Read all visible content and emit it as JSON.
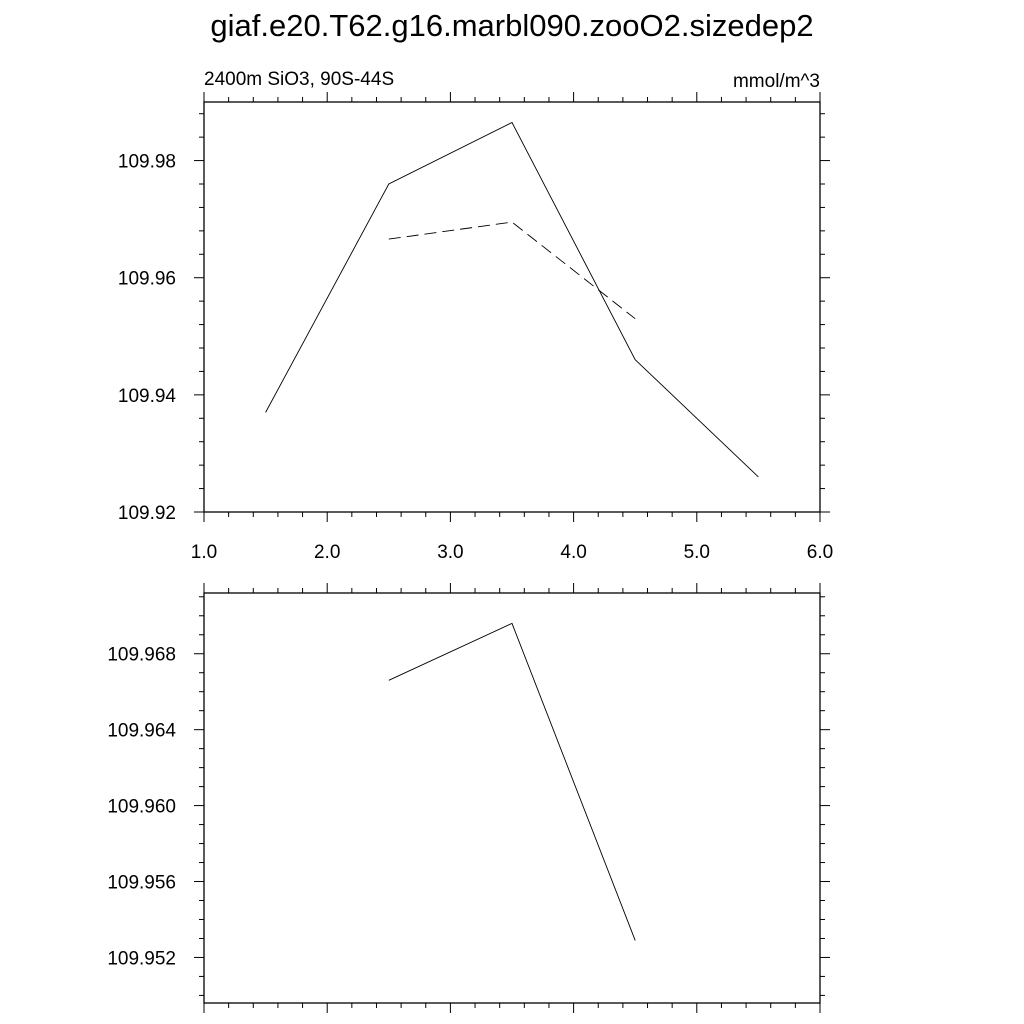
{
  "title": "giaf.e20.T62.g16.marbl090.zooO2.sizedep2",
  "chart_data": [
    {
      "type": "line",
      "subtitle_left": "2400m SiO3, 90S-44S",
      "subtitle_right": "mmol/m^3",
      "xlim": [
        1.0,
        6.0
      ],
      "ylim": [
        109.92,
        109.99
      ],
      "xticks": [
        1.0,
        2.0,
        3.0,
        4.0,
        5.0,
        6.0
      ],
      "xtick_labels": [
        "1.0",
        "2.0",
        "3.0",
        "4.0",
        "5.0",
        "6.0"
      ],
      "yticks": [
        109.92,
        109.94,
        109.96,
        109.98
      ],
      "ytick_labels": [
        "109.92",
        "109.94",
        "109.96",
        "109.98"
      ],
      "grid": false,
      "series": [
        {
          "style": "solid",
          "x": [
            1.5,
            2.5,
            3.5,
            4.5,
            5.5
          ],
          "y": [
            109.937,
            109.976,
            109.9865,
            109.946,
            109.926
          ]
        },
        {
          "style": "dashed",
          "x": [
            2.5,
            3.5,
            4.5
          ],
          "y": [
            109.9666,
            109.9695,
            109.953
          ]
        }
      ]
    },
    {
      "type": "line",
      "xlim": [
        1.0,
        6.0
      ],
      "ylim": [
        109.9496,
        109.9712
      ],
      "yticks": [
        109.952,
        109.956,
        109.96,
        109.964,
        109.968
      ],
      "ytick_labels": [
        "109.952",
        "109.956",
        "109.960",
        "109.964",
        "109.968"
      ],
      "grid": false,
      "series": [
        {
          "style": "solid",
          "x": [
            2.5,
            3.5,
            4.5
          ],
          "y": [
            109.9666,
            109.9696,
            109.9529
          ]
        }
      ]
    }
  ]
}
